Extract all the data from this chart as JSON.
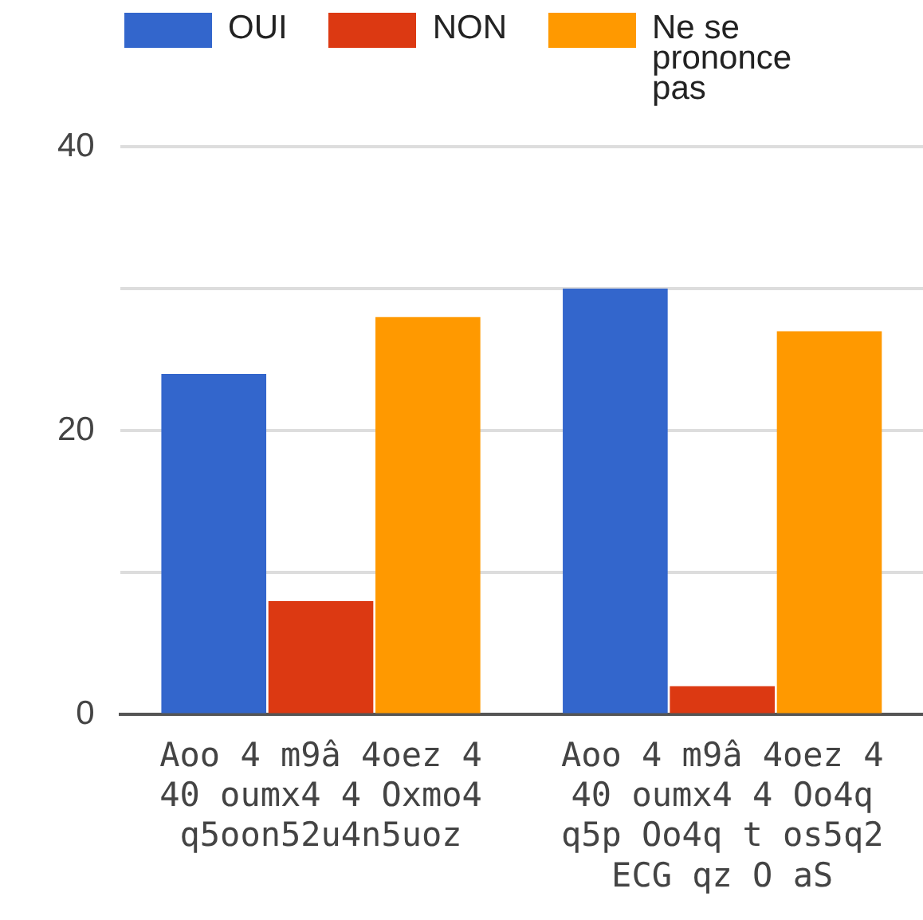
{
  "chart_data": {
    "type": "bar",
    "categories": [
      "Aoo 4 m9â 4oez 4\n40 oumx4 4 Oxmo4\nq5oon52u4n5uoz",
      "Aoo 4 m9â 4oez 4\n40 oumx4 4 Oo4q\nq5p Oo4q t os5q2\nECG qz O aS"
    ],
    "series": [
      {
        "name": "OUI",
        "color": "#3366cc",
        "values": [
          24,
          30
        ]
      },
      {
        "name": "NON",
        "color": "#dc3912",
        "values": [
          8,
          2
        ]
      },
      {
        "name": "Ne se prononce pas",
        "color": "#ff9900",
        "values": [
          28,
          27
        ]
      }
    ],
    "ylim": [
      0,
      40
    ],
    "yticks": [
      0,
      {
        "value": 10,
        "label": null
      },
      20,
      {
        "value": 30,
        "label": null
      },
      40
    ],
    "grid": "y",
    "legend": "top"
  }
}
